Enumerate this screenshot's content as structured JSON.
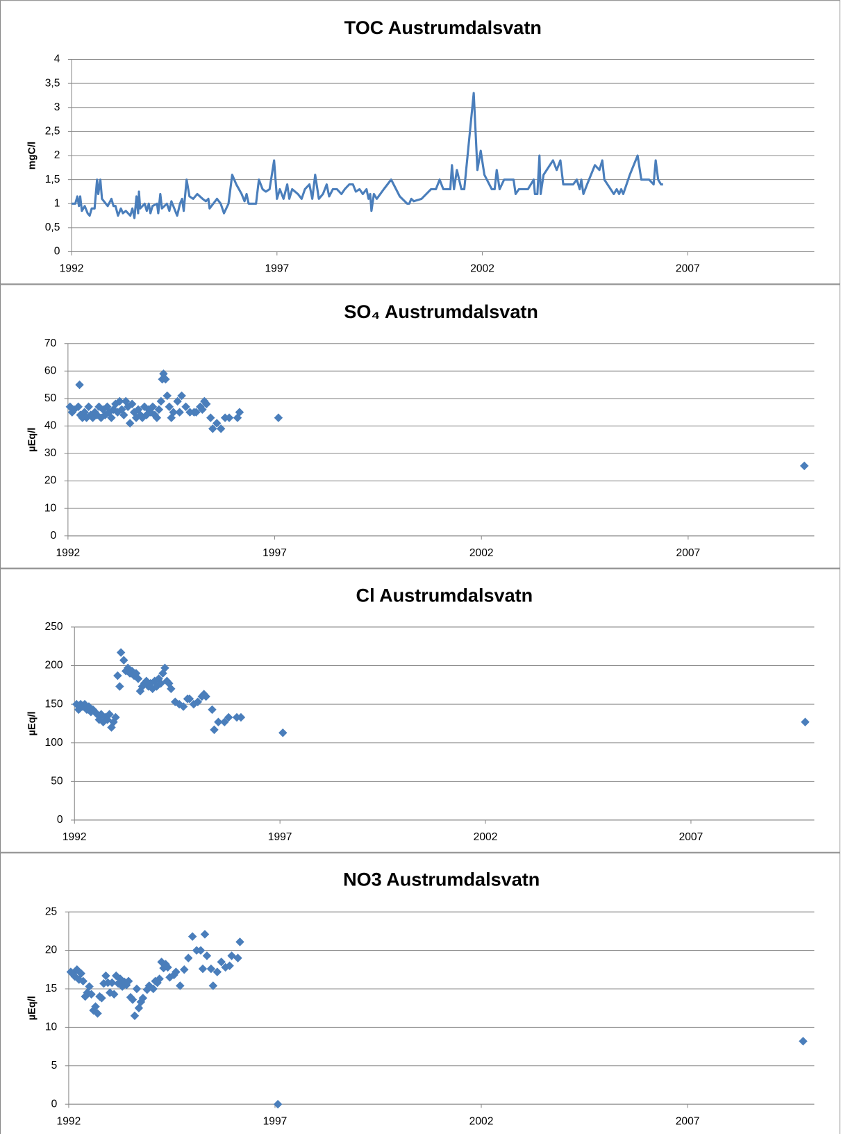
{
  "chart_data": [
    {
      "type": "line",
      "title": "TOC Austrumdalsvatn",
      "y_label": "mgC/l",
      "color": "#4a7ebb",
      "grid": true,
      "xlim": [
        1992,
        2010.08
      ],
      "xticks": [
        1992,
        1997,
        2002,
        2007
      ],
      "ylim": [
        0,
        4
      ],
      "yticks": [
        0,
        {
          "value": 0.5,
          "label": "0,5"
        },
        1,
        {
          "value": 1.5,
          "label": "1,5"
        },
        2,
        {
          "value": 2.5,
          "label": "2,5"
        },
        3,
        {
          "value": 3.5,
          "label": "3,5"
        },
        4
      ],
      "x": [
        1992.0,
        1992.09,
        1992.14,
        1992.18,
        1992.21,
        1992.25,
        1992.32,
        1992.39,
        1992.44,
        1992.49,
        1992.56,
        1992.62,
        1992.65,
        1992.7,
        1992.74,
        1992.88,
        1992.97,
        1993.02,
        1993.07,
        1993.13,
        1993.2,
        1993.25,
        1993.32,
        1993.43,
        1993.48,
        1993.53,
        1993.58,
        1993.62,
        1993.64,
        1993.67,
        1993.78,
        1993.83,
        1993.88,
        1993.92,
        1993.97,
        1994.08,
        1994.11,
        1994.16,
        1994.2,
        1994.32,
        1994.38,
        1994.43,
        1994.57,
        1994.64,
        1994.69,
        1994.73,
        1994.8,
        1994.87,
        1994.96,
        1995.06,
        1995.19,
        1995.27,
        1995.33,
        1995.36,
        1995.54,
        1995.63,
        1995.71,
        1995.82,
        1995.91,
        1996.01,
        1996.14,
        1996.21,
        1996.26,
        1996.31,
        1996.49,
        1996.56,
        1996.65,
        1996.73,
        1996.82,
        1996.93,
        1997.0,
        1997.07,
        1997.16,
        1997.25,
        1997.3,
        1997.37,
        1997.51,
        1997.6,
        1997.68,
        1997.79,
        1997.86,
        1997.93,
        1998.02,
        1998.12,
        1998.21,
        1998.27,
        1998.36,
        1998.46,
        1998.57,
        1998.65,
        1998.76,
        1998.85,
        1998.92,
        1999.01,
        1999.09,
        1999.18,
        1999.23,
        1999.27,
        1999.3,
        1999.36,
        1999.43,
        1999.6,
        1999.78,
        1999.99,
        2000.17,
        2000.22,
        2000.27,
        2000.33,
        2000.52,
        2000.75,
        2000.87,
        2000.96,
        2001.05,
        2001.22,
        2001.26,
        2001.31,
        2001.38,
        2001.49,
        2001.56,
        2001.79,
        2001.88,
        2001.96,
        2002.05,
        2002.23,
        2002.3,
        2002.35,
        2002.42,
        2002.53,
        2002.76,
        2002.81,
        2002.89,
        2003.11,
        2003.25,
        2003.28,
        2003.34,
        2003.39,
        2003.42,
        2003.49,
        2003.72,
        2003.81,
        2003.9,
        2003.97,
        2004.21,
        2004.3,
        2004.37,
        2004.41,
        2004.46,
        2004.55,
        2004.74,
        2004.85,
        2004.92,
        2004.97,
        2005.2,
        2005.27,
        2005.33,
        2005.38,
        2005.43,
        2005.59,
        2005.78,
        2005.87,
        2006.06,
        2006.17,
        2006.22,
        2006.28,
        2006.35,
        2006.4
      ],
      "values": [
        1.0,
        1.0,
        1.15,
        0.95,
        1.15,
        0.85,
        0.95,
        0.8,
        0.75,
        0.9,
        0.9,
        1.5,
        1.2,
        1.5,
        1.1,
        0.95,
        1.1,
        0.95,
        0.95,
        0.75,
        0.9,
        0.8,
        0.85,
        0.75,
        0.9,
        0.7,
        1.15,
        0.8,
        1.25,
        0.9,
        1.0,
        0.85,
        1.0,
        0.8,
        0.95,
        1.0,
        0.8,
        1.2,
        0.9,
        1.0,
        0.85,
        1.05,
        0.75,
        1.0,
        1.1,
        0.85,
        1.5,
        1.15,
        1.1,
        1.2,
        1.1,
        1.05,
        1.1,
        0.9,
        1.1,
        1.0,
        0.8,
        1.0,
        1.6,
        1.4,
        1.2,
        1.05,
        1.2,
        1.0,
        1.0,
        1.5,
        1.3,
        1.25,
        1.3,
        1.9,
        1.1,
        1.3,
        1.1,
        1.4,
        1.1,
        1.3,
        1.2,
        1.1,
        1.3,
        1.4,
        1.1,
        1.6,
        1.1,
        1.2,
        1.4,
        1.15,
        1.3,
        1.3,
        1.2,
        1.3,
        1.4,
        1.4,
        1.25,
        1.3,
        1.2,
        1.3,
        1.1,
        1.2,
        0.85,
        1.2,
        1.1,
        1.3,
        1.5,
        1.15,
        1.0,
        1.0,
        1.1,
        1.05,
        1.1,
        1.3,
        1.3,
        1.5,
        1.3,
        1.3,
        1.8,
        1.3,
        1.7,
        1.3,
        1.3,
        3.3,
        1.7,
        2.1,
        1.6,
        1.3,
        1.3,
        1.7,
        1.3,
        1.5,
        1.5,
        1.2,
        1.3,
        1.3,
        1.5,
        1.2,
        1.2,
        2.0,
        1.2,
        1.6,
        1.9,
        1.7,
        1.9,
        1.4,
        1.4,
        1.5,
        1.3,
        1.5,
        1.2,
        1.4,
        1.8,
        1.7,
        1.9,
        1.5,
        1.2,
        1.3,
        1.2,
        1.3,
        1.2,
        1.6,
        2.0,
        1.5,
        1.5,
        1.4,
        1.9,
        1.5,
        1.4,
        1.4
      ]
    },
    {
      "type": "scatter",
      "title": "SO₄ Austrumdalsvatn",
      "y_label": "µEq/l",
      "color": "#4a7ebb",
      "grid": true,
      "xlim": [
        1992,
        2010.05
      ],
      "xticks": [
        1992,
        1997,
        2002,
        2007
      ],
      "ylim": [
        0,
        70
      ],
      "yticks": [
        0,
        10,
        20,
        30,
        40,
        50,
        60,
        70
      ],
      "x": [
        1992.05,
        1992.1,
        1992.15,
        1992.28,
        1992.25,
        1992.3,
        1992.35,
        1992.4,
        1992.45,
        1992.5,
        1992.55,
        1992.6,
        1992.65,
        1992.7,
        1992.75,
        1992.8,
        1992.85,
        1992.9,
        1992.95,
        1993.0,
        1993.05,
        1993.1,
        1993.15,
        1993.2,
        1993.25,
        1993.3,
        1993.35,
        1993.4,
        1993.45,
        1993.5,
        1993.55,
        1993.6,
        1993.65,
        1993.7,
        1993.75,
        1993.8,
        1993.85,
        1993.9,
        1993.95,
        1994.0,
        1994.05,
        1994.1,
        1994.15,
        1994.2,
        1994.25,
        1994.28,
        1994.31,
        1994.36,
        1994.4,
        1994.45,
        1994.5,
        1994.55,
        1994.65,
        1994.7,
        1994.75,
        1994.85,
        1994.95,
        1995.05,
        1995.1,
        1995.2,
        1995.25,
        1995.3,
        1995.35,
        1995.45,
        1995.5,
        1995.6,
        1995.7,
        1995.8,
        1995.9,
        1996.1,
        1996.15,
        1997.09,
        2009.81
      ],
      "values": [
        47,
        45,
        46,
        55,
        47,
        44,
        43,
        45,
        43,
        47,
        44,
        43,
        45,
        44,
        47,
        43,
        46,
        44,
        47,
        45,
        43,
        46,
        48,
        45,
        49,
        46,
        44,
        49,
        47,
        41,
        48,
        45,
        43,
        46,
        44,
        43,
        47,
        44,
        46,
        45,
        47,
        44,
        43,
        46,
        49,
        57,
        59,
        57,
        51,
        47,
        43,
        45,
        49,
        45,
        51,
        47,
        45,
        45,
        45,
        47,
        46,
        49,
        48,
        43,
        39,
        41,
        39,
        43,
        43,
        43,
        45,
        43,
        25.5
      ]
    },
    {
      "type": "scatter",
      "title": "Cl Austrumdalsvatn",
      "y_label": "µEq/l",
      "color": "#4a7ebb",
      "grid": true,
      "xlim": [
        1992,
        2010.0
      ],
      "xticks": [
        1992,
        1997,
        2002,
        2007
      ],
      "ylim": [
        0,
        250
      ],
      "yticks": [
        0,
        50,
        100,
        150,
        200,
        250
      ],
      "x": [
        1992.05,
        1992.1,
        1992.15,
        1992.2,
        1992.25,
        1992.3,
        1992.35,
        1992.4,
        1992.45,
        1992.5,
        1992.55,
        1992.6,
        1992.65,
        1992.7,
        1992.75,
        1992.8,
        1992.85,
        1992.9,
        1992.95,
        1993.0,
        1993.05,
        1993.1,
        1993.13,
        1993.2,
        1993.25,
        1993.3,
        1993.35,
        1993.4,
        1993.45,
        1993.5,
        1993.55,
        1993.6,
        1993.65,
        1993.7,
        1993.75,
        1993.8,
        1993.85,
        1993.9,
        1993.95,
        1994.0,
        1994.05,
        1994.1,
        1994.15,
        1994.2,
        1994.25,
        1994.3,
        1994.35,
        1994.45,
        1994.55,
        1994.65,
        1994.75,
        1994.8,
        1994.9,
        1995.0,
        1995.1,
        1995.15,
        1995.2,
        1995.35,
        1995.4,
        1995.5,
        1995.65,
        1995.75,
        1995.95,
        1996.05,
        1997.07,
        2009.78
      ],
      "values": [
        150,
        143,
        150,
        147,
        150,
        143,
        147,
        140,
        143,
        140,
        137,
        130,
        137,
        127,
        133,
        130,
        137,
        120,
        127,
        133,
        187,
        173,
        217,
        207,
        193,
        197,
        190,
        193,
        187,
        190,
        183,
        167,
        173,
        177,
        180,
        173,
        177,
        170,
        180,
        173,
        183,
        177,
        190,
        197,
        180,
        177,
        170,
        153,
        150,
        147,
        157,
        157,
        150,
        153,
        160,
        163,
        160,
        143,
        117,
        127,
        127,
        133,
        133,
        133,
        113,
        127
      ]
    },
    {
      "type": "scatter",
      "title": "NO3 Austrumdalsvatn",
      "y_label": "µEq/l",
      "color": "#4a7ebb",
      "grid": true,
      "xlim": [
        1992,
        2010.07
      ],
      "xticks": [
        1992,
        1997,
        2002,
        2007
      ],
      "ylim": [
        0,
        25
      ],
      "yticks": [
        0,
        5,
        10,
        15,
        20,
        25
      ],
      "x": [
        1992.05,
        1992.1,
        1992.15,
        1992.2,
        1992.25,
        1992.3,
        1992.35,
        1992.4,
        1992.45,
        1992.5,
        1992.55,
        1992.6,
        1992.65,
        1992.7,
        1992.75,
        1992.8,
        1992.85,
        1992.9,
        1992.95,
        1993.0,
        1993.05,
        1993.1,
        1993.15,
        1993.2,
        1993.25,
        1993.3,
        1993.35,
        1993.4,
        1993.45,
        1993.5,
        1993.55,
        1993.6,
        1993.65,
        1993.7,
        1993.75,
        1993.8,
        1993.9,
        1993.95,
        1994.05,
        1994.1,
        1994.15,
        1994.2,
        1994.25,
        1994.3,
        1994.35,
        1994.4,
        1994.45,
        1994.55,
        1994.6,
        1994.7,
        1994.8,
        1994.9,
        1995.0,
        1995.1,
        1995.2,
        1995.25,
        1995.3,
        1995.35,
        1995.45,
        1995.5,
        1995.6,
        1995.7,
        1995.8,
        1995.9,
        1995.95,
        1996.1,
        1996.15,
        1997.07,
        2009.8
      ],
      "values": [
        17.2,
        17.0,
        16.6,
        17.5,
        16.2,
        17.0,
        16.0,
        14.0,
        14.5,
        15.3,
        14.3,
        12.2,
        12.7,
        11.8,
        14.0,
        13.8,
        15.7,
        16.7,
        15.8,
        14.5,
        15.8,
        14.3,
        16.7,
        15.7,
        16.3,
        15.3,
        15.9,
        15.5,
        16.0,
        13.9,
        13.6,
        11.5,
        15.0,
        12.5,
        13.3,
        13.8,
        14.9,
        15.4,
        15.0,
        16.0,
        15.8,
        16.3,
        18.5,
        17.7,
        18.2,
        17.8,
        16.5,
        16.8,
        17.2,
        15.4,
        17.5,
        19.0,
        21.8,
        20.0,
        20.0,
        17.6,
        22.1,
        19.3,
        17.6,
        15.4,
        17.2,
        18.5,
        17.8,
        18.0,
        19.3,
        19.0,
        21.1,
        0,
        8.2
      ]
    }
  ]
}
